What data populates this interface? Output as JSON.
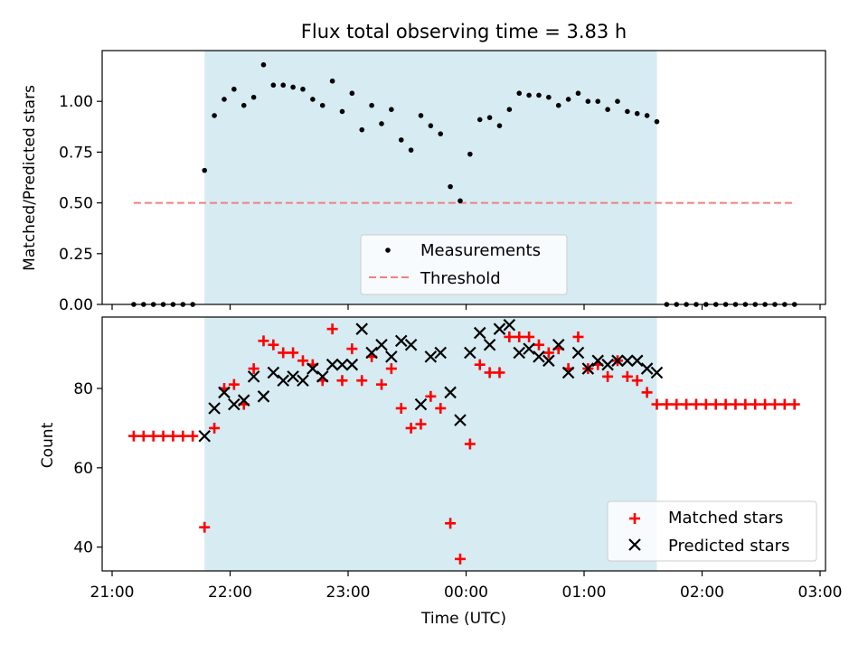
{
  "chart_data": [
    {
      "type": "scatter",
      "title": "Flux total observing time = 3.83 h",
      "xlabel": "",
      "ylabel": "Matched/Predicted stars",
      "ylim": [
        0,
        1.25
      ],
      "yticks": [
        "0.00",
        "0.25",
        "0.50",
        "0.75",
        "1.00"
      ],
      "shaded_span": [
        "21:47",
        "01:37"
      ],
      "legend_position": "bottom-center",
      "series": [
        {
          "name": "Measurements",
          "marker": "dot",
          "color": "#000000",
          "x": [
            "21:11",
            "21:16",
            "21:21",
            "21:26",
            "21:31",
            "21:36",
            "21:41",
            "21:47",
            "21:52",
            "21:57",
            "22:02",
            "22:07",
            "22:12",
            "22:17",
            "22:22",
            "22:27",
            "22:32",
            "22:37",
            "22:42",
            "22:47",
            "22:52",
            "22:57",
            "23:02",
            "23:07",
            "23:12",
            "23:17",
            "23:22",
            "23:27",
            "23:32",
            "23:37",
            "23:42",
            "23:47",
            "23:52",
            "23:57",
            "00:02",
            "00:07",
            "00:12",
            "00:17",
            "00:22",
            "00:27",
            "00:32",
            "00:37",
            "00:42",
            "00:47",
            "00:52",
            "00:57",
            "01:02",
            "01:07",
            "01:12",
            "01:17",
            "01:22",
            "01:27",
            "01:32",
            "01:37",
            "01:42",
            "01:47",
            "01:52",
            "01:57",
            "02:02",
            "02:07",
            "02:12",
            "02:17",
            "02:22",
            "02:27",
            "02:32",
            "02:37",
            "02:42",
            "02:47"
          ],
          "y": [
            0,
            0,
            0,
            0,
            0,
            0,
            0,
            0.66,
            0.93,
            1.01,
            1.06,
            0.98,
            1.02,
            1.18,
            1.08,
            1.08,
            1.07,
            1.06,
            1.01,
            0.98,
            1.1,
            0.95,
            1.04,
            0.86,
            0.98,
            0.89,
            0.96,
            0.81,
            0.76,
            0.93,
            0.88,
            0.84,
            0.58,
            0.51,
            0.74,
            0.91,
            0.92,
            0.88,
            0.96,
            1.04,
            1.03,
            1.03,
            1.02,
            0.98,
            1.01,
            1.04,
            1.0,
            1.0,
            0.96,
            1.0,
            0.95,
            0.94,
            0.93,
            0.9,
            0,
            0,
            0,
            0,
            0,
            0,
            0,
            0,
            0,
            0,
            0,
            0,
            0,
            0
          ]
        },
        {
          "name": "Threshold",
          "style": "dashed",
          "color": "#f08080",
          "x": [
            "21:11",
            "02:47"
          ],
          "y": [
            0.5,
            0.5
          ]
        }
      ]
    },
    {
      "type": "scatter",
      "title": "",
      "xlabel": "Time (UTC)",
      "ylabel": "Count",
      "ylim": [
        34,
        98
      ],
      "yticks": [
        "40",
        "60",
        "80"
      ],
      "xticks": [
        "21:00",
        "22:00",
        "23:00",
        "00:00",
        "01:00",
        "02:00",
        "03:00"
      ],
      "shaded_span": [
        "21:47",
        "01:37"
      ],
      "legend_position": "bottom-right",
      "series": [
        {
          "name": "Matched stars",
          "marker": "plus",
          "color": "#ff0000",
          "x": [
            "21:11",
            "21:16",
            "21:21",
            "21:26",
            "21:31",
            "21:36",
            "21:41",
            "21:47",
            "21:52",
            "21:57",
            "22:02",
            "22:07",
            "22:12",
            "22:17",
            "22:22",
            "22:27",
            "22:32",
            "22:37",
            "22:42",
            "22:47",
            "22:52",
            "22:57",
            "23:02",
            "23:07",
            "23:12",
            "23:17",
            "23:22",
            "23:27",
            "23:32",
            "23:37",
            "23:42",
            "23:47",
            "23:52",
            "23:57",
            "00:02",
            "00:07",
            "00:12",
            "00:17",
            "00:22",
            "00:27",
            "00:32",
            "00:37",
            "00:42",
            "00:47",
            "00:52",
            "00:57",
            "01:02",
            "01:07",
            "01:12",
            "01:17",
            "01:22",
            "01:27",
            "01:32",
            "01:37",
            "01:42",
            "01:47",
            "01:52",
            "01:57",
            "02:02",
            "02:07",
            "02:12",
            "02:17",
            "02:22",
            "02:27",
            "02:32",
            "02:37",
            "02:42",
            "02:47"
          ],
          "y": [
            68,
            68,
            68,
            68,
            68,
            68,
            68,
            45,
            70,
            80,
            81,
            76,
            85,
            92,
            91,
            89,
            89,
            87,
            86,
            82,
            95,
            82,
            90,
            82,
            88,
            81,
            85,
            75,
            70,
            71,
            78,
            75,
            46,
            37,
            66,
            86,
            84,
            84,
            93,
            93,
            93,
            91,
            89,
            90,
            85,
            93,
            85,
            86,
            83,
            87,
            83,
            82,
            79,
            76,
            76,
            76,
            76,
            76,
            76,
            76,
            76,
            76,
            76,
            76,
            76,
            76,
            76,
            76
          ]
        },
        {
          "name": "Predicted stars",
          "marker": "x",
          "color": "#000000",
          "x": [
            "21:47",
            "21:52",
            "21:57",
            "22:02",
            "22:07",
            "22:12",
            "22:17",
            "22:22",
            "22:27",
            "22:32",
            "22:37",
            "22:42",
            "22:47",
            "22:52",
            "22:57",
            "23:02",
            "23:07",
            "23:12",
            "23:17",
            "23:22",
            "23:27",
            "23:32",
            "23:37",
            "23:42",
            "23:47",
            "23:52",
            "23:57",
            "00:02",
            "00:07",
            "00:12",
            "00:17",
            "00:22",
            "00:27",
            "00:32",
            "00:37",
            "00:42",
            "00:47",
            "00:52",
            "00:57",
            "01:02",
            "01:07",
            "01:12",
            "01:17",
            "01:22",
            "01:27",
            "01:32",
            "01:37"
          ],
          "y": [
            68,
            75,
            79,
            76,
            77,
            83,
            78,
            84,
            82,
            83,
            82,
            85,
            83,
            86,
            86,
            86,
            95,
            89,
            91,
            88,
            92,
            91,
            76,
            88,
            89,
            79,
            72,
            89,
            94,
            91,
            95,
            96,
            89,
            90,
            88,
            87,
            91,
            84,
            89,
            85,
            87,
            86,
            87,
            87,
            87,
            85,
            84
          ]
        }
      ]
    }
  ]
}
